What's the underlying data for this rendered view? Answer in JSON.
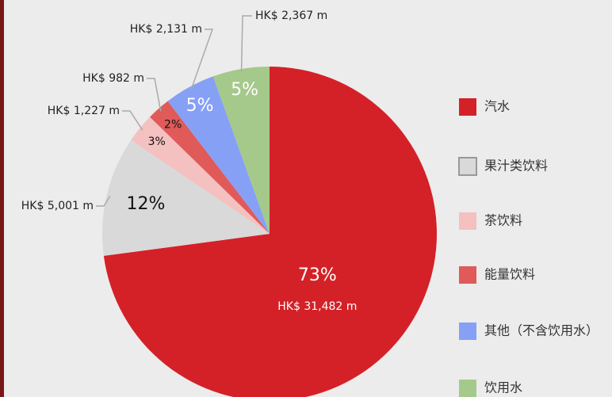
{
  "chart_data": {
    "type": "pie",
    "categories": [
      "汽水",
      "果汁类饮料",
      "茶饮料",
      "能量饮料",
      "其他（不含饮用水）",
      "饮用水"
    ],
    "values": [
      31482,
      5001,
      1227,
      982,
      2131,
      2367
    ],
    "value_labels": [
      "HK$ 31,482 m",
      "HK$ 5,001 m",
      "HK$ 1,227 m",
      "HK$ 982 m",
      "HK$ 2,131 m",
      "HK$ 2,367 m"
    ],
    "percent_labels": [
      "73%",
      "12%",
      "3%",
      "2%",
      "5%",
      "5%"
    ],
    "colors": [
      "#d42127",
      "#d9d9d9",
      "#f4c0c0",
      "#e05a5a",
      "#86a0f5",
      "#a5c98a"
    ],
    "legend": "right"
  }
}
